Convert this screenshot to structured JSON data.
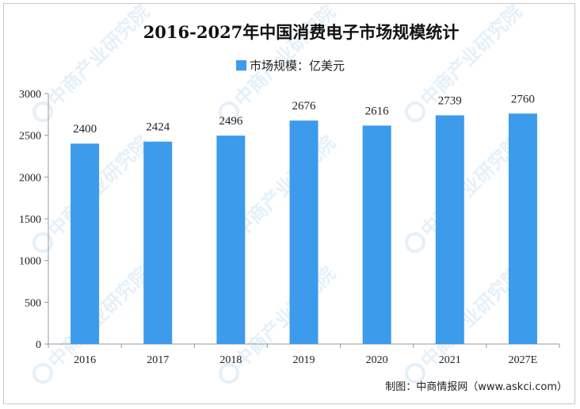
{
  "chart_data": {
    "type": "bar",
    "title": "2016-2027年中国消费电子市场规模统计",
    "categories": [
      "2016",
      "2017",
      "2018",
      "2019",
      "2020",
      "2021",
      "2027E"
    ],
    "series": [
      {
        "name": "市场规模：亿美元",
        "values": [
          2400,
          2424,
          2496,
          2676,
          2616,
          2739,
          2760
        ]
      }
    ],
    "data_labels": [
      "2400",
      "2424",
      "2496",
      "2676",
      "2616",
      "2739",
      "2760"
    ],
    "y_ticks": [
      "0",
      "500",
      "1000",
      "1500",
      "2000",
      "2500",
      "3000"
    ],
    "ylim": [
      0,
      3000
    ],
    "grid": false,
    "legend_position": "top-center",
    "colors": {
      "bar": "#3c9bea",
      "axis": "#9a9a9a"
    }
  },
  "source_text": "制图：中商情报网（www.askci.com）",
  "watermark": "中商产业研究院"
}
